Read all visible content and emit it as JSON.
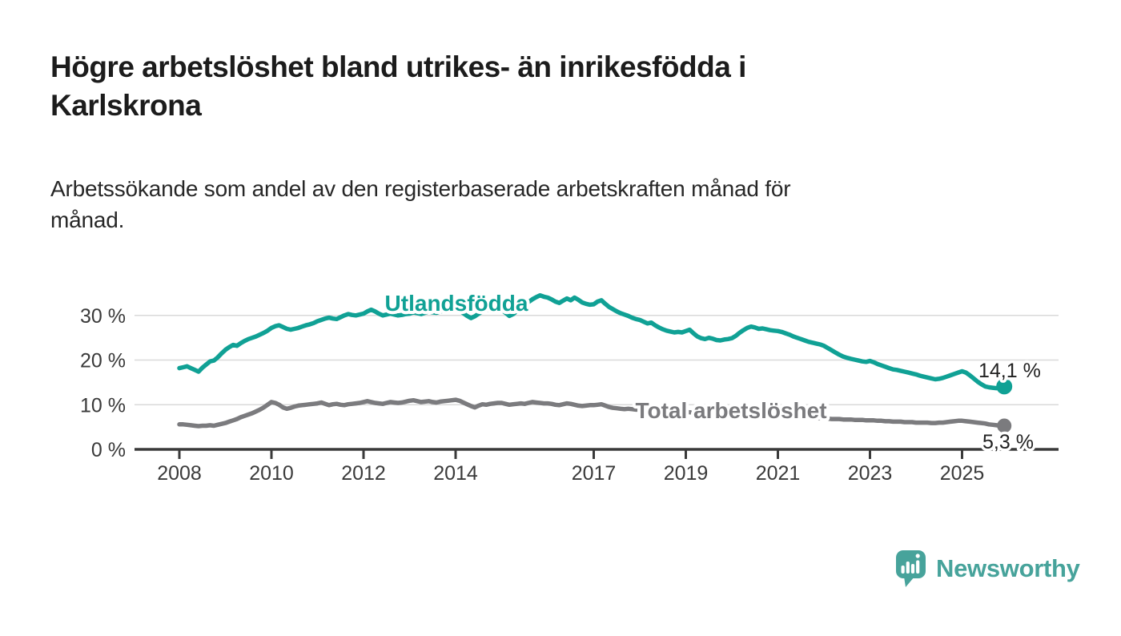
{
  "header": {
    "title": "Högre arbetslöshet bland utrikes- än inrikesfödda i Karlskrona",
    "title_lines": [
      "Högre arbetslöshet bland utrikes- än inrikesfödda i",
      "Karlskrona"
    ],
    "subtitle": "Arbetssökande som andel av den registerbaserade arbetskraften månad för månad.",
    "subtitle_lines": [
      "Arbetssökande som andel av den registerbaserade arbetskraften månad för",
      "månad."
    ]
  },
  "footer": {
    "brand": "Newsworthy",
    "brand_color": "#47a39b",
    "logo_icon": "speech-bubble-bar-chart-exclamation"
  },
  "chart_data": {
    "type": "line",
    "title": "Högre arbetslöshet bland utrikes- än inrikesfödda i Karlskrona",
    "subtitle": "Arbetssökande som andel av den registerbaserade arbetskraften månad för månad.",
    "x_unit": "monthly, January 2008 – December 2025",
    "x_start_year": 2008,
    "points_per_year": 12,
    "x_ticks": [
      2008,
      2010,
      2012,
      2014,
      2017,
      2019,
      2021,
      2023,
      2025
    ],
    "y_ticks": [
      {
        "value": 0,
        "label": "0 %"
      },
      {
        "value": 10,
        "label": "10 %"
      },
      {
        "value": 20,
        "label": "20 %"
      },
      {
        "value": 30,
        "label": "30 %"
      }
    ],
    "ylim": [
      0,
      36
    ],
    "grid": "horizontal-only",
    "legend_position": "inline-labels-on-lines",
    "series": [
      {
        "name": "Utlandsfödda",
        "color": "#10a195",
        "end_label": "14,1 %",
        "last_value": 14.1,
        "values": [
          18.2,
          18.4,
          18.6,
          18.2,
          17.8,
          17.4,
          18.3,
          19.0,
          19.7,
          19.9,
          20.6,
          21.5,
          22.3,
          22.9,
          23.4,
          23.2,
          23.8,
          24.3,
          24.7,
          25.0,
          25.3,
          25.7,
          26.1,
          26.6,
          27.2,
          27.6,
          27.8,
          27.4,
          27.0,
          26.8,
          27.0,
          27.2,
          27.5,
          27.8,
          28.0,
          28.3,
          28.7,
          29.0,
          29.3,
          29.5,
          29.3,
          29.2,
          29.6,
          30.0,
          30.3,
          30.1,
          30.0,
          30.2,
          30.4,
          30.9,
          31.3,
          30.9,
          30.4,
          30.0,
          30.2,
          30.4,
          30.2,
          30.0,
          30.1,
          30.3,
          30.4,
          30.7,
          30.5,
          30.3,
          30.6,
          30.9,
          30.7,
          30.6,
          30.9,
          31.1,
          31.2,
          31.3,
          31.5,
          31.1,
          30.5,
          29.9,
          29.4,
          29.8,
          30.4,
          30.9,
          31.2,
          31.4,
          31.2,
          31.0,
          31.3,
          30.6,
          29.9,
          30.3,
          31.0,
          31.7,
          32.4,
          33.0,
          33.6,
          34.1,
          34.5,
          34.2,
          34.0,
          33.6,
          33.1,
          32.8,
          33.3,
          33.8,
          33.4,
          34.0,
          33.5,
          32.9,
          32.6,
          32.4,
          32.5,
          33.1,
          33.4,
          32.6,
          31.9,
          31.4,
          30.9,
          30.5,
          30.2,
          29.9,
          29.5,
          29.2,
          29.0,
          28.6,
          28.2,
          28.4,
          27.8,
          27.3,
          26.9,
          26.6,
          26.4,
          26.2,
          26.3,
          26.2,
          26.5,
          26.8,
          26.0,
          25.3,
          24.9,
          24.7,
          25.0,
          24.8,
          24.5,
          24.4,
          24.6,
          24.7,
          24.9,
          25.4,
          26.1,
          26.7,
          27.2,
          27.5,
          27.3,
          27.0,
          27.1,
          26.9,
          26.7,
          26.6,
          26.5,
          26.3,
          26.0,
          25.7,
          25.3,
          25.0,
          24.7,
          24.4,
          24.1,
          23.9,
          23.7,
          23.5,
          23.2,
          22.7,
          22.2,
          21.7,
          21.2,
          20.8,
          20.5,
          20.3,
          20.1,
          19.9,
          19.7,
          19.6,
          19.8,
          19.5,
          19.1,
          18.8,
          18.5,
          18.2,
          17.9,
          17.8,
          17.6,
          17.4,
          17.2,
          17.0,
          16.8,
          16.5,
          16.3,
          16.1,
          15.9,
          15.7,
          15.8,
          16.0,
          16.3,
          16.6,
          16.9,
          17.2,
          17.5,
          17.2,
          16.6,
          15.9,
          15.2,
          14.6,
          14.1,
          13.9,
          13.8,
          13.7,
          13.9,
          14.1
        ]
      },
      {
        "name": "Total arbetslöshet",
        "color": "#7b7b7e",
        "end_label": "5,3 %",
        "last_value": 5.3,
        "values": [
          5.6,
          5.6,
          5.5,
          5.4,
          5.3,
          5.2,
          5.3,
          5.3,
          5.4,
          5.3,
          5.5,
          5.7,
          5.9,
          6.2,
          6.5,
          6.8,
          7.2,
          7.5,
          7.8,
          8.1,
          8.5,
          8.9,
          9.4,
          10.0,
          10.6,
          10.4,
          10.0,
          9.4,
          9.1,
          9.3,
          9.6,
          9.8,
          9.9,
          10.0,
          10.1,
          10.2,
          10.3,
          10.5,
          10.2,
          9.9,
          10.1,
          10.2,
          10.0,
          9.9,
          10.1,
          10.2,
          10.3,
          10.4,
          10.6,
          10.8,
          10.6,
          10.4,
          10.3,
          10.2,
          10.4,
          10.6,
          10.5,
          10.4,
          10.5,
          10.7,
          10.9,
          11.0,
          10.8,
          10.6,
          10.7,
          10.8,
          10.6,
          10.5,
          10.7,
          10.8,
          10.9,
          11.0,
          11.1,
          10.9,
          10.5,
          10.1,
          9.7,
          9.4,
          9.8,
          10.1,
          10.0,
          10.2,
          10.3,
          10.4,
          10.4,
          10.2,
          10.0,
          10.1,
          10.2,
          10.3,
          10.2,
          10.4,
          10.6,
          10.5,
          10.4,
          10.3,
          10.3,
          10.2,
          10.0,
          9.9,
          10.1,
          10.3,
          10.2,
          10.0,
          9.8,
          9.7,
          9.8,
          9.9,
          9.9,
          10.0,
          10.1,
          9.8,
          9.5,
          9.3,
          9.2,
          9.1,
          9.0,
          9.1,
          9.0,
          8.9,
          8.9,
          8.7,
          8.6,
          8.5,
          8.4,
          8.3,
          8.2,
          8.3,
          8.5,
          8.4,
          8.4,
          8.4,
          8.4,
          8.3,
          8.2,
          8.1,
          8.0,
          7.9,
          7.9,
          7.8,
          7.8,
          7.8,
          7.9,
          7.9,
          8.0,
          8.2,
          8.5,
          8.7,
          8.9,
          9.0,
          8.9,
          8.8,
          8.7,
          8.6,
          8.5,
          8.5,
          8.4,
          8.3,
          8.1,
          7.9,
          7.7,
          7.6,
          7.4,
          7.3,
          7.2,
          7.1,
          7.0,
          7.0,
          6.9,
          6.9,
          6.8,
          6.8,
          6.8,
          6.7,
          6.7,
          6.7,
          6.6,
          6.6,
          6.6,
          6.5,
          6.5,
          6.5,
          6.4,
          6.4,
          6.3,
          6.3,
          6.2,
          6.2,
          6.2,
          6.1,
          6.1,
          6.1,
          6.0,
          6.0,
          6.0,
          6.0,
          5.9,
          5.9,
          6.0,
          6.0,
          6.1,
          6.2,
          6.3,
          6.4,
          6.4,
          6.3,
          6.2,
          6.1,
          6.0,
          5.9,
          5.8,
          5.6,
          5.5,
          5.4,
          5.3,
          5.3
        ]
      }
    ]
  }
}
